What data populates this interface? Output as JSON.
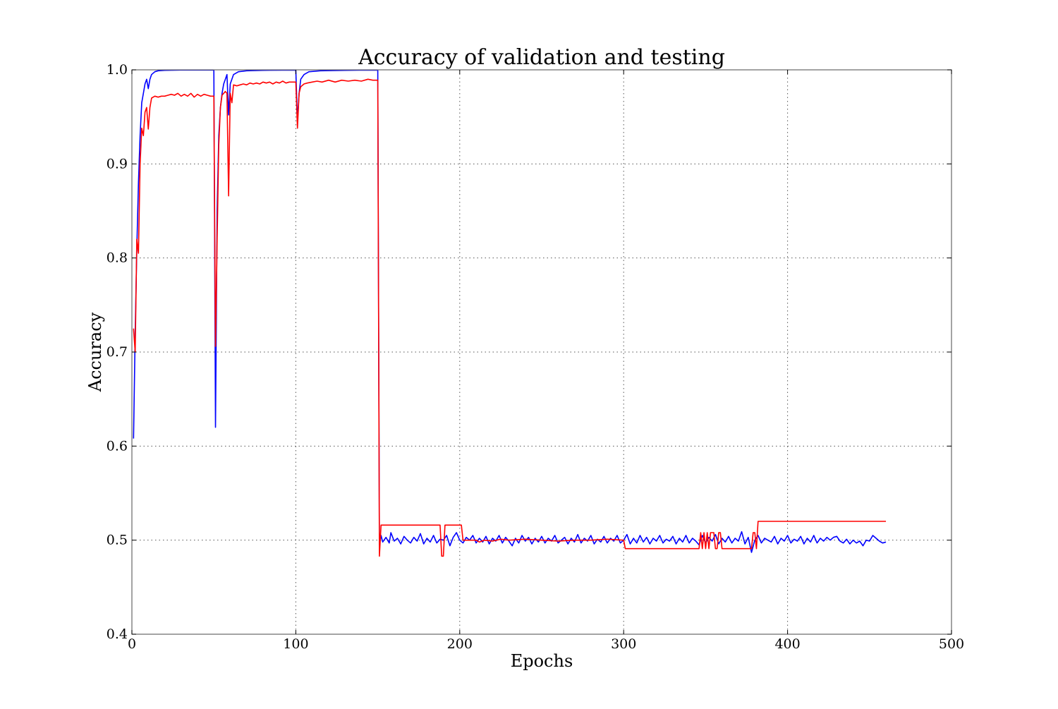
{
  "chart_data": {
    "type": "line",
    "title": "Accuracy of validation and testing",
    "xlabel": "Epochs",
    "ylabel": "Accuracy",
    "xlim": [
      0,
      500
    ],
    "ylim": [
      0.4,
      1.0
    ],
    "x_ticks": [
      "0",
      "100",
      "200",
      "300",
      "400",
      "500"
    ],
    "y_ticks": [
      "0.4",
      "0.5",
      "0.6",
      "0.7",
      "0.8",
      "0.9",
      "1.0"
    ],
    "grid": true,
    "legend": "none",
    "series": [
      {
        "color": "#0000ff",
        "points": [
          [
            1,
            0.608
          ],
          [
            2,
            0.72
          ],
          [
            3,
            0.81
          ],
          [
            4,
            0.88
          ],
          [
            5,
            0.93
          ],
          [
            6,
            0.965
          ],
          [
            7,
            0.975
          ],
          [
            8,
            0.985
          ],
          [
            9,
            0.99
          ],
          [
            10,
            0.98
          ],
          [
            11,
            0.99
          ],
          [
            12,
            0.995
          ],
          [
            14,
            0.998
          ],
          [
            16,
            0.999
          ],
          [
            20,
            0.9995
          ],
          [
            30,
            0.9998
          ],
          [
            50,
            0.9998
          ],
          [
            51,
            0.62
          ],
          [
            52,
            0.85
          ],
          [
            53,
            0.93
          ],
          [
            54,
            0.96
          ],
          [
            55,
            0.975
          ],
          [
            56,
            0.985
          ],
          [
            57,
            0.99
          ],
          [
            58,
            0.995
          ],
          [
            59,
            0.952
          ],
          [
            60,
            0.985
          ],
          [
            62,
            0.995
          ],
          [
            65,
            0.998
          ],
          [
            70,
            0.999
          ],
          [
            80,
            0.9995
          ],
          [
            100,
            0.9998
          ],
          [
            101,
            0.945
          ],
          [
            102,
            0.975
          ],
          [
            103,
            0.99
          ],
          [
            105,
            0.995
          ],
          [
            108,
            0.998
          ],
          [
            115,
            0.999
          ],
          [
            130,
            0.9995
          ],
          [
            150,
            0.9998
          ],
          [
            151,
            0.495
          ],
          [
            152,
            0.505
          ],
          [
            153,
            0.498
          ],
          [
            155,
            0.503
          ],
          [
            157,
            0.497
          ],
          [
            158,
            0.508
          ],
          [
            160,
            0.499
          ],
          [
            162,
            0.502
          ],
          [
            164,
            0.496
          ],
          [
            166,
            0.504
          ],
          [
            168,
            0.5
          ],
          [
            170,
            0.497
          ],
          [
            172,
            0.503
          ],
          [
            174,
            0.499
          ],
          [
            176,
            0.507
          ],
          [
            178,
            0.496
          ],
          [
            180,
            0.502
          ],
          [
            182,
            0.498
          ],
          [
            184,
            0.505
          ],
          [
            186,
            0.497
          ],
          [
            188,
            0.501
          ],
          [
            190,
            0.5
          ],
          [
            192,
            0.505
          ],
          [
            194,
            0.494
          ],
          [
            196,
            0.503
          ],
          [
            198,
            0.508
          ],
          [
            200,
            0.5
          ],
          [
            202,
            0.497
          ],
          [
            204,
            0.503
          ],
          [
            206,
            0.5
          ],
          [
            208,
            0.505
          ],
          [
            210,
            0.497
          ],
          [
            212,
            0.502
          ],
          [
            214,
            0.498
          ],
          [
            216,
            0.504
          ],
          [
            218,
            0.496
          ],
          [
            220,
            0.502
          ],
          [
            222,
            0.499
          ],
          [
            224,
            0.505
          ],
          [
            226,
            0.497
          ],
          [
            228,
            0.503
          ],
          [
            230,
            0.499
          ],
          [
            232,
            0.494
          ],
          [
            234,
            0.502
          ],
          [
            236,
            0.497
          ],
          [
            238,
            0.505
          ],
          [
            240,
            0.499
          ],
          [
            242,
            0.503
          ],
          [
            244,
            0.496
          ],
          [
            246,
            0.502
          ],
          [
            248,
            0.498
          ],
          [
            250,
            0.504
          ],
          [
            252,
            0.497
          ],
          [
            254,
            0.502
          ],
          [
            256,
            0.499
          ],
          [
            258,
            0.505
          ],
          [
            260,
            0.497
          ],
          [
            262,
            0.5
          ],
          [
            264,
            0.503
          ],
          [
            266,
            0.496
          ],
          [
            268,
            0.502
          ],
          [
            270,
            0.498
          ],
          [
            272,
            0.506
          ],
          [
            274,
            0.497
          ],
          [
            276,
            0.502
          ],
          [
            278,
            0.499
          ],
          [
            280,
            0.505
          ],
          [
            282,
            0.496
          ],
          [
            284,
            0.501
          ],
          [
            286,
            0.498
          ],
          [
            288,
            0.504
          ],
          [
            290,
            0.497
          ],
          [
            292,
            0.502
          ],
          [
            294,
            0.499
          ],
          [
            296,
            0.505
          ],
          [
            298,
            0.497
          ],
          [
            300,
            0.5
          ],
          [
            302,
            0.506
          ],
          [
            304,
            0.496
          ],
          [
            306,
            0.502
          ],
          [
            308,
            0.497
          ],
          [
            310,
            0.505
          ],
          [
            312,
            0.498
          ],
          [
            314,
            0.503
          ],
          [
            316,
            0.496
          ],
          [
            318,
            0.502
          ],
          [
            320,
            0.499
          ],
          [
            322,
            0.505
          ],
          [
            324,
            0.497
          ],
          [
            326,
            0.501
          ],
          [
            328,
            0.499
          ],
          [
            330,
            0.504
          ],
          [
            332,
            0.496
          ],
          [
            334,
            0.502
          ],
          [
            336,
            0.498
          ],
          [
            338,
            0.505
          ],
          [
            340,
            0.497
          ],
          [
            342,
            0.502
          ],
          [
            344,
            0.499
          ],
          [
            346,
            0.495
          ],
          [
            348,
            0.505
          ],
          [
            350,
            0.497
          ],
          [
            352,
            0.503
          ],
          [
            354,
            0.499
          ],
          [
            356,
            0.506
          ],
          [
            358,
            0.496
          ],
          [
            360,
            0.502
          ],
          [
            362,
            0.498
          ],
          [
            364,
            0.504
          ],
          [
            366,
            0.497
          ],
          [
            368,
            0.502
          ],
          [
            370,
            0.499
          ],
          [
            372,
            0.509
          ],
          [
            374,
            0.496
          ],
          [
            376,
            0.503
          ],
          [
            378,
            0.487
          ],
          [
            380,
            0.5
          ],
          [
            382,
            0.505
          ],
          [
            384,
            0.497
          ],
          [
            386,
            0.502
          ],
          [
            388,
            0.5
          ],
          [
            390,
            0.498
          ],
          [
            392,
            0.504
          ],
          [
            394,
            0.496
          ],
          [
            396,
            0.502
          ],
          [
            398,
            0.499
          ],
          [
            400,
            0.505
          ],
          [
            402,
            0.497
          ],
          [
            404,
            0.501
          ],
          [
            406,
            0.499
          ],
          [
            408,
            0.504
          ],
          [
            410,
            0.496
          ],
          [
            412,
            0.502
          ],
          [
            414,
            0.498
          ],
          [
            416,
            0.505
          ],
          [
            418,
            0.497
          ],
          [
            420,
            0.502
          ],
          [
            422,
            0.499
          ],
          [
            424,
            0.503
          ],
          [
            426,
            0.5
          ],
          [
            428,
            0.503
          ],
          [
            430,
            0.504
          ],
          [
            432,
            0.499
          ],
          [
            434,
            0.497
          ],
          [
            436,
            0.501
          ],
          [
            438,
            0.496
          ],
          [
            440,
            0.5
          ],
          [
            442,
            0.497
          ],
          [
            444,
            0.499
          ],
          [
            446,
            0.494
          ],
          [
            448,
            0.5
          ],
          [
            450,
            0.499
          ],
          [
            452,
            0.505
          ],
          [
            454,
            0.502
          ],
          [
            456,
            0.499
          ],
          [
            458,
            0.497
          ],
          [
            460,
            0.498
          ]
        ]
      },
      {
        "color": "#ff0000",
        "points": [
          [
            1,
            0.725
          ],
          [
            2,
            0.7
          ],
          [
            3,
            0.82
          ],
          [
            4,
            0.805
          ],
          [
            5,
            0.9
          ],
          [
            6,
            0.938
          ],
          [
            7,
            0.93
          ],
          [
            8,
            0.955
          ],
          [
            9,
            0.96
          ],
          [
            10,
            0.937
          ],
          [
            11,
            0.96
          ],
          [
            12,
            0.97
          ],
          [
            14,
            0.972
          ],
          [
            16,
            0.971
          ],
          [
            18,
            0.972
          ],
          [
            20,
            0.972
          ],
          [
            22,
            0.973
          ],
          [
            24,
            0.974
          ],
          [
            26,
            0.973
          ],
          [
            28,
            0.975
          ],
          [
            30,
            0.972
          ],
          [
            32,
            0.974
          ],
          [
            34,
            0.972
          ],
          [
            36,
            0.975
          ],
          [
            38,
            0.971
          ],
          [
            40,
            0.974
          ],
          [
            42,
            0.972
          ],
          [
            44,
            0.974
          ],
          [
            46,
            0.973
          ],
          [
            48,
            0.972
          ],
          [
            50,
            0.972
          ],
          [
            51,
            0.706
          ],
          [
            52,
            0.82
          ],
          [
            53,
            0.92
          ],
          [
            54,
            0.96
          ],
          [
            55,
            0.973
          ],
          [
            56,
            0.975
          ],
          [
            57,
            0.977
          ],
          [
            58,
            0.975
          ],
          [
            59,
            0.866
          ],
          [
            60,
            0.975
          ],
          [
            61,
            0.965
          ],
          [
            62,
            0.984
          ],
          [
            64,
            0.983
          ],
          [
            66,
            0.984
          ],
          [
            68,
            0.985
          ],
          [
            70,
            0.984
          ],
          [
            72,
            0.986
          ],
          [
            74,
            0.985
          ],
          [
            76,
            0.986
          ],
          [
            78,
            0.985
          ],
          [
            80,
            0.987
          ],
          [
            82,
            0.986
          ],
          [
            84,
            0.987
          ],
          [
            86,
            0.985
          ],
          [
            88,
            0.987
          ],
          [
            90,
            0.986
          ],
          [
            92,
            0.988
          ],
          [
            94,
            0.986
          ],
          [
            96,
            0.987
          ],
          [
            98,
            0.987
          ],
          [
            100,
            0.987
          ],
          [
            101,
            0.938
          ],
          [
            102,
            0.975
          ],
          [
            103,
            0.982
          ],
          [
            105,
            0.985
          ],
          [
            107,
            0.986
          ],
          [
            110,
            0.987
          ],
          [
            113,
            0.988
          ],
          [
            116,
            0.987
          ],
          [
            120,
            0.989
          ],
          [
            124,
            0.987
          ],
          [
            128,
            0.989
          ],
          [
            132,
            0.988
          ],
          [
            136,
            0.989
          ],
          [
            140,
            0.988
          ],
          [
            144,
            0.99
          ],
          [
            147,
            0.989
          ],
          [
            150,
            0.989
          ],
          [
            151,
            0.483
          ],
          [
            152,
            0.516
          ],
          [
            188,
            0.516
          ],
          [
            189,
            0.483
          ],
          [
            190,
            0.483
          ],
          [
            191,
            0.516
          ],
          [
            201,
            0.516
          ],
          [
            202,
            0.5
          ],
          [
            210,
            0.5
          ],
          [
            212,
            0.498
          ],
          [
            215,
            0.5
          ],
          [
            220,
            0.499
          ],
          [
            225,
            0.501
          ],
          [
            230,
            0.5
          ],
          [
            240,
            0.501
          ],
          [
            250,
            0.5
          ],
          [
            260,
            0.499
          ],
          [
            270,
            0.5
          ],
          [
            280,
            0.5
          ],
          [
            290,
            0.501
          ],
          [
            300,
            0.5
          ],
          [
            301,
            0.491
          ],
          [
            346,
            0.491
          ],
          [
            347,
            0.508
          ],
          [
            348,
            0.491
          ],
          [
            349,
            0.508
          ],
          [
            350,
            0.491
          ],
          [
            351,
            0.508
          ],
          [
            352,
            0.491
          ],
          [
            353,
            0.508
          ],
          [
            355,
            0.508
          ],
          [
            356,
            0.491
          ],
          [
            357,
            0.491
          ],
          [
            358,
            0.508
          ],
          [
            359,
            0.508
          ],
          [
            360,
            0.491
          ],
          [
            378,
            0.491
          ],
          [
            379,
            0.508
          ],
          [
            380,
            0.508
          ],
          [
            381,
            0.491
          ],
          [
            382,
            0.52
          ],
          [
            460,
            0.52
          ]
        ]
      }
    ]
  }
}
